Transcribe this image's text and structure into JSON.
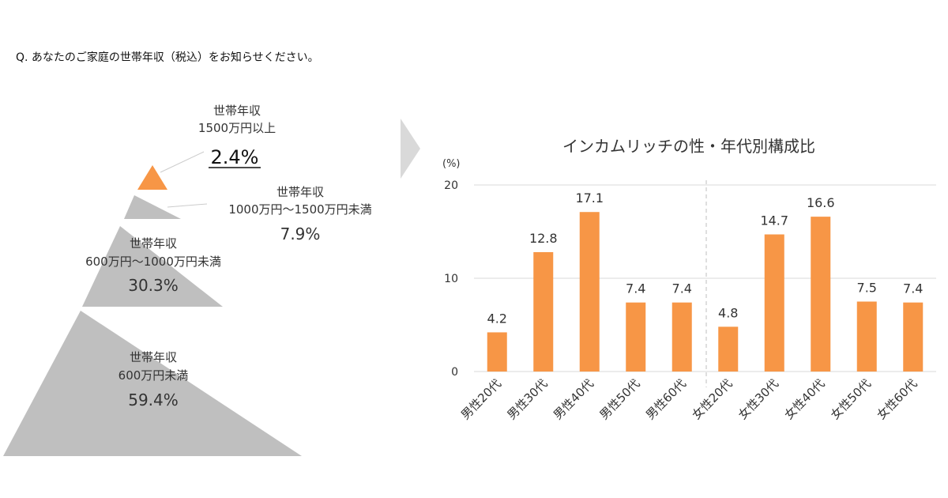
{
  "question": "Q. あなたのご家庭の世帯年収（税込）をお知らせください。",
  "pyramid": {
    "tiers": [
      {
        "line1": "世帯年収",
        "line2": "1500万円以上",
        "percent": "2.4%",
        "value": 2.4,
        "color": "#f79646"
      },
      {
        "line1": "世帯年収",
        "line2": "1000万円〜1500万円未満",
        "percent": "7.9%",
        "value": 7.9,
        "color": "#bfbfbf"
      },
      {
        "line1": "世帯年収",
        "line2": "600万円〜1000万円未満",
        "percent": "30.3%",
        "value": 30.3,
        "color": "#bfbfbf"
      },
      {
        "line1": "世帯年収",
        "line2": "600万円未満",
        "percent": "59.4%",
        "value": 59.4,
        "color": "#bfbfbf"
      }
    ]
  },
  "chart_data": {
    "type": "bar",
    "title": "インカムリッチの性・年代別構成比",
    "ylabel": "(%)",
    "ylim": [
      0,
      20
    ],
    "yticks": [
      0,
      10,
      20
    ],
    "grid": true,
    "categories": [
      "男性20代",
      "男性30代",
      "男性40代",
      "男性50代",
      "男性60代",
      "女性20代",
      "女性30代",
      "女性40代",
      "女性50代",
      "女性60代"
    ],
    "values": [
      4.2,
      12.8,
      17.1,
      7.4,
      7.4,
      4.8,
      14.7,
      16.6,
      7.5,
      7.4
    ],
    "data_labels": [
      "4.2",
      "12.8",
      "17.1",
      "7.4",
      "7.4",
      "4.8",
      "14.7",
      "16.6",
      "7.5",
      "7.4"
    ],
    "bar_color": "#f79646"
  }
}
